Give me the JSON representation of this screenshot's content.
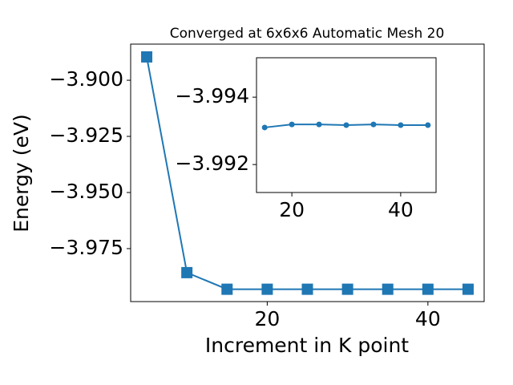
{
  "chart_data": [
    {
      "type": "line",
      "title": "Converged at 6x6x6 Automatic Mesh 20",
      "x_label": "Increment in K point",
      "y_label": "Energy (eV)",
      "x": [
        5,
        10,
        15,
        20,
        25,
        30,
        35,
        40,
        45
      ],
      "series": [
        {
          "color": "#1f77b4",
          "marker": "square",
          "values": [
            -3.8896,
            -3.9857,
            -3.9931,
            -3.9931,
            -3.9931,
            -3.9931,
            -3.9931,
            -3.9931,
            -3.9931
          ]
        }
      ],
      "xlim": [
        3,
        47
      ],
      "xticks": [
        20,
        40
      ],
      "ylim": [
        -3.9986,
        -3.8839
      ],
      "yticks": [
        {
          "value": -3.9,
          "label": "−3.900"
        },
        {
          "value": -3.925,
          "label": "−3.925"
        },
        {
          "value": -3.95,
          "label": "−3.950"
        },
        {
          "value": -3.975,
          "label": "−3.975"
        }
      ]
    },
    {
      "type": "line",
      "x": [
        15,
        20,
        25,
        30,
        35,
        40,
        45
      ],
      "series": [
        {
          "color": "#1f77b4",
          "marker": "circle",
          "values": [
            -3.9931,
            -3.99319,
            -3.99319,
            -3.99317,
            -3.99319,
            -3.99317,
            -3.99317
          ]
        }
      ],
      "xlim": [
        13.5,
        46.5
      ],
      "xticks": [
        20,
        40
      ],
      "ylim": [
        -3.99117,
        -3.99517
      ],
      "yticks": [
        {
          "value": -3.994,
          "label": "−3.994"
        },
        {
          "value": -3.992,
          "label": "−3.992"
        }
      ]
    }
  ]
}
